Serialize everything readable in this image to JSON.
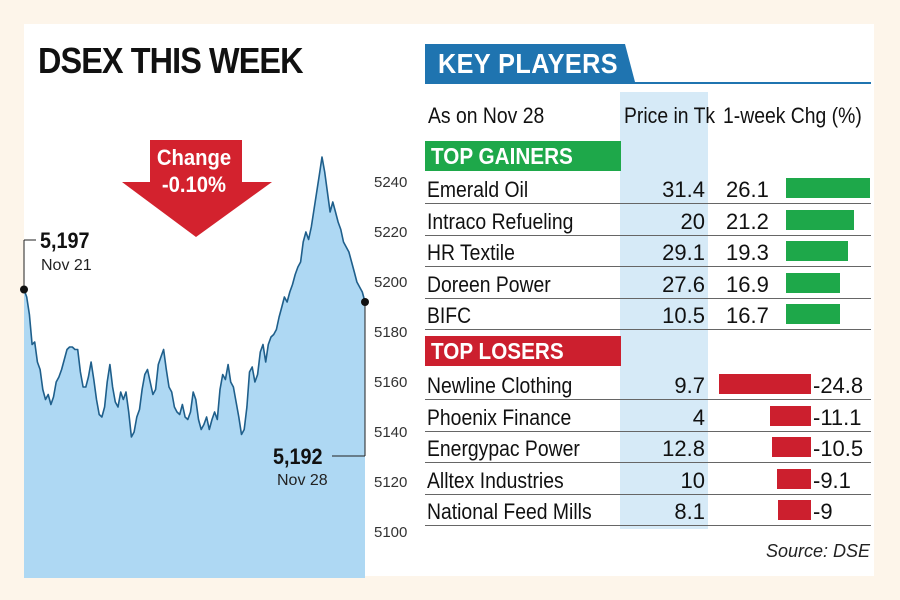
{
  "left_panel": {
    "title": "DSEX THIS WEEK",
    "change_label_line1": "Change",
    "change_label_line2": "-0.10%",
    "start_value": "5,197",
    "start_date": "Nov 21",
    "end_value": "5,192",
    "end_date": "Nov 28"
  },
  "right_panel": {
    "title": "KEY PLAYERS",
    "as_on": "As on Nov 28",
    "price_header": "Price in Tk",
    "change_header": "1-week Chg (%)",
    "gainers_title": "TOP GAINERS",
    "losers_title": "TOP LOSERS",
    "gainers": [
      {
        "name": "Emerald Oil",
        "price": "31.4",
        "change": "26.1",
        "change_value": 26.1
      },
      {
        "name": "Intraco Refueling",
        "price": "20",
        "change": "21.2",
        "change_value": 21.2
      },
      {
        "name": "HR Textile",
        "price": "29.1",
        "change": "19.3",
        "change_value": 19.3
      },
      {
        "name": "Doreen Power",
        "price": "27.6",
        "change": "16.9",
        "change_value": 16.9
      },
      {
        "name": "BIFC",
        "price": "10.5",
        "change": "16.7",
        "change_value": 16.7
      }
    ],
    "losers": [
      {
        "name": "Newline Clothing",
        "price": "9.7",
        "change": "-24.8",
        "change_value": -24.8
      },
      {
        "name": "Phoenix Finance",
        "price": "4",
        "change": "-11.1",
        "change_value": -11.1
      },
      {
        "name": "Energypac Power",
        "price": "12.8",
        "change": "-10.5",
        "change_value": -10.5
      },
      {
        "name": "Alltex Industries",
        "price": "10",
        "change": "-9.1",
        "change_value": -9.1
      },
      {
        "name": "National Feed Mills",
        "price": "8.1",
        "change": "-9",
        "change_value": -9.0
      }
    ],
    "source": "Source: DSE"
  },
  "colors": {
    "gainer": "#1ea84a",
    "loser": "#cc1f2e",
    "header_blue": "#1f74b0",
    "area_fill": "#aed8f3",
    "price_col": "#d6eaf7"
  },
  "chart_data": [
    {
      "type": "area",
      "title": "DSEX THIS WEEK",
      "xlabel": "",
      "ylabel": "",
      "x_labels": [
        "Nov 21",
        "Nov 28"
      ],
      "y_ticks": [
        5100,
        5120,
        5140,
        5160,
        5180,
        5200,
        5220,
        5240
      ],
      "ylim": [
        5090,
        5250
      ],
      "values": [
        5197,
        5194,
        5187,
        5175,
        5176,
        5168,
        5165,
        5157,
        5153,
        5155,
        5151,
        5154,
        5160,
        5162,
        5165,
        5169,
        5173,
        5174,
        5174,
        5173,
        5173,
        5164,
        5158,
        5158,
        5162,
        5168,
        5161,
        5153,
        5147,
        5146,
        5150,
        5160,
        5167,
        5158,
        5152,
        5150,
        5156,
        5153,
        5156,
        5148,
        5138,
        5140,
        5146,
        5149,
        5157,
        5163,
        5165,
        5160,
        5155,
        5157,
        5167,
        5170,
        5173,
        5165,
        5158,
        5156,
        5150,
        5148,
        5147,
        5151,
        5146,
        5145,
        5148,
        5156,
        5153,
        5145,
        5141,
        5143,
        5146,
        5141,
        5145,
        5148,
        5145,
        5157,
        5163,
        5161,
        5167,
        5160,
        5158,
        5152,
        5146,
        5139,
        5141,
        5150,
        5164,
        5166,
        5160,
        5163,
        5172,
        5175,
        5168,
        5175,
        5178,
        5179,
        5181,
        5186,
        5190,
        5194,
        5192,
        5196,
        5199,
        5203,
        5206,
        5208,
        5216,
        5220,
        5217,
        5222,
        5229,
        5236,
        5243,
        5250,
        5244,
        5236,
        5228,
        5232,
        5228,
        5224,
        5221,
        5216,
        5214,
        5212,
        5208,
        5204,
        5200,
        5198,
        5196,
        5192
      ],
      "series": [
        {
          "name": "DSEX",
          "start": 5197,
          "end": 5192
        }
      ],
      "annotations": [
        "5,197 Nov 21",
        "5,192 Nov 28",
        "Change -0.10%"
      ]
    },
    {
      "type": "bar",
      "title": "KEY PLAYERS",
      "xlabel": "1-week Chg (%)",
      "categories": [
        "Emerald Oil",
        "Intraco Refueling",
        "HR Textile",
        "Doreen Power",
        "BIFC",
        "Newline Clothing",
        "Phoenix Finance",
        "Energypac Power",
        "Alltex Industries",
        "National Feed Mills"
      ],
      "values": [
        26.1,
        21.2,
        19.3,
        16.9,
        16.7,
        -24.8,
        -11.1,
        -10.5,
        -9.1,
        -9.0
      ],
      "series": [
        {
          "name": "1-week Chg (%)",
          "values": [
            26.1,
            21.2,
            19.3,
            16.9,
            16.7,
            -24.8,
            -11.1,
            -10.5,
            -9.1,
            -9.0
          ]
        }
      ]
    }
  ]
}
